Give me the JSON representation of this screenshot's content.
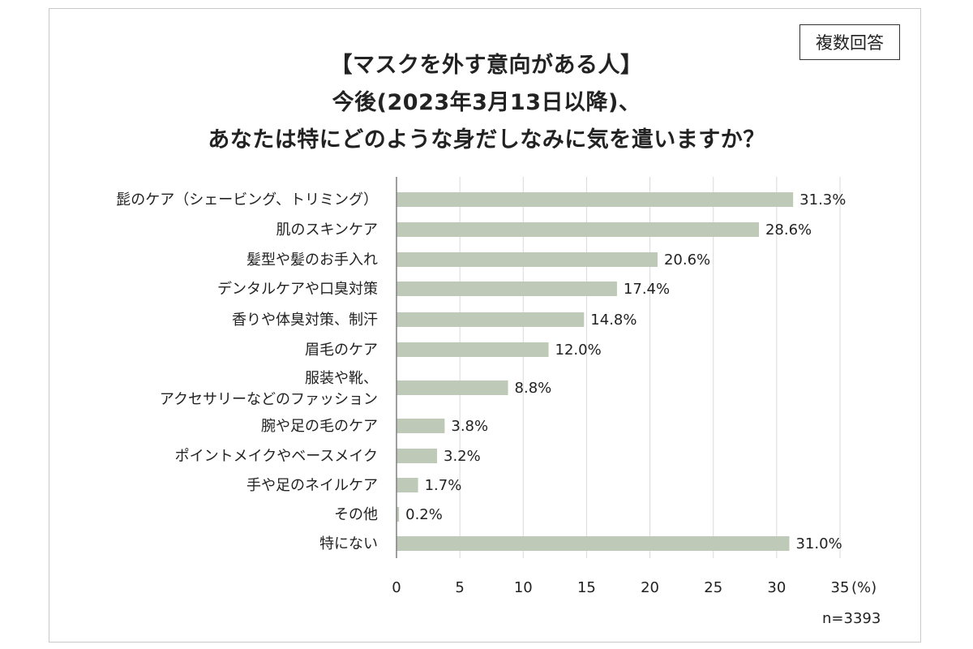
{
  "badge": "複数回答",
  "title_lines": [
    "【マスクを外す意向がある人】",
    "今後(2023年3月13日以降)、",
    "あなたは特にどのような身だしなみに気を遣いますか？"
  ],
  "sample_note": "n=3393",
  "colors": {
    "bar": "#bfc9b7",
    "grid": "#d9d9d9",
    "axis": "#7f7f7f"
  },
  "chart_data": {
    "type": "bar",
    "orientation": "horizontal",
    "categories": [
      [
        "髭のケア（シェービング、トリミング）"
      ],
      [
        "肌のスキンケア"
      ],
      [
        "髪型や髪のお手入れ"
      ],
      [
        "デンタルケアや口臭対策"
      ],
      [
        "香りや体臭対策、制汗"
      ],
      [
        "眉毛のケア"
      ],
      [
        "服装や靴、",
        "アクセサリーなどのファッション"
      ],
      [
        "腕や足の毛のケア"
      ],
      [
        "ポイントメイクやベースメイク"
      ],
      [
        "手や足のネイルケア"
      ],
      [
        "その他"
      ],
      [
        "特にない"
      ]
    ],
    "values": [
      31.3,
      28.6,
      20.6,
      17.4,
      14.8,
      12.0,
      8.8,
      3.8,
      3.2,
      1.7,
      0.2,
      31.0
    ],
    "value_labels": [
      "31.3%",
      "28.6%",
      "20.6%",
      "17.4%",
      "14.8%",
      "12.0%",
      "8.8%",
      "3.8%",
      "3.2%",
      "1.7%",
      "0.2%",
      "31.0%"
    ],
    "xlim": [
      0,
      35
    ],
    "xticks": [
      "0",
      "5",
      "10",
      "15",
      "20",
      "25",
      "30",
      "35"
    ],
    "xlabel": "(%)",
    "grid": true
  }
}
